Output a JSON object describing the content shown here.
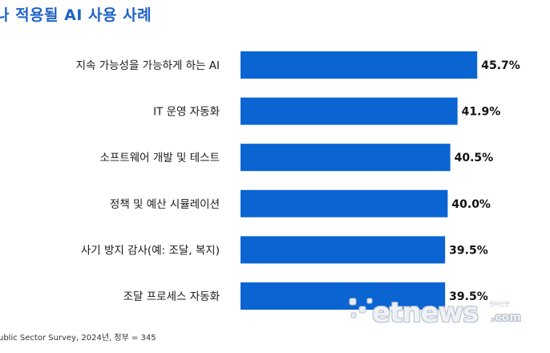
{
  "title": "나 적용될 AI 사용 사례",
  "source": "ublic Sector Survey, 2024년, 정부 = 345",
  "watermark": {
    "main": "etnews",
    "com": ".com",
    "small": "전자신문"
  },
  "colors": {
    "bar": "#0a64d2",
    "title": "#1f63c6"
  },
  "chart_data": {
    "type": "bar",
    "orientation": "horizontal",
    "categories": [
      "지속 가능성을 가능하게 하는 AI",
      "IT 운영 자동화",
      "소프트웨어 개발 및 테스트",
      "정책 및 예산 시뮬레이션",
      "사기 방지 감사(예: 조달, 복지)",
      "조달 프로세스 자동화"
    ],
    "values": [
      45.7,
      41.9,
      40.5,
      40.0,
      39.5,
      39.5
    ],
    "value_labels": [
      "45.7%",
      "41.9%",
      "40.5%",
      "40.0%",
      "39.5%",
      "39.5%"
    ],
    "unit": "%",
    "title": "나 적용될 AI 사용 사례",
    "xlabel": "",
    "ylabel": "",
    "grid": false,
    "legend": "none"
  }
}
